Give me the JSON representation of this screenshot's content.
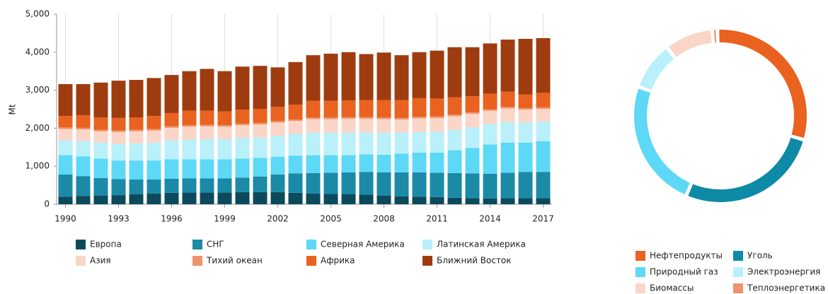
{
  "chart_data": [
    {
      "type": "bar",
      "stacked": true,
      "y_label": "Mt",
      "categories": [
        "1990",
        null,
        null,
        "1993",
        null,
        null,
        "1996",
        null,
        null,
        "1999",
        null,
        null,
        "2002",
        null,
        null,
        "2005",
        null,
        null,
        "2008",
        null,
        null,
        "2011",
        null,
        null,
        "2014",
        null,
        null,
        "2017"
      ],
      "ylim": [
        0,
        5000
      ],
      "yticks": [
        0,
        {
          "value": 1000,
          "label": "1,000"
        },
        {
          "value": 2000,
          "label": "2,000"
        },
        {
          "value": 3000,
          "label": "3,000"
        },
        {
          "value": 4000,
          "label": "4,000"
        },
        {
          "value": 5000,
          "label": "5,000"
        }
      ],
      "grid": "x",
      "series": [
        {
          "name": "Европа",
          "color": "#0b4a5c",
          "values": [
            200,
            220,
            230,
            240,
            260,
            280,
            300,
            310,
            310,
            310,
            320,
            320,
            320,
            300,
            280,
            270,
            260,
            250,
            230,
            210,
            200,
            190,
            170,
            160,
            150,
            160,
            160,
            160
          ]
        },
        {
          "name": "СНГ",
          "color": "#1b8aa6",
          "values": [
            580,
            520,
            460,
            420,
            390,
            370,
            370,
            370,
            370,
            370,
            380,
            410,
            460,
            510,
            540,
            560,
            580,
            600,
            610,
            630,
            640,
            640,
            650,
            650,
            650,
            670,
            690,
            690
          ]
        },
        {
          "name": "Северная Америка",
          "color": "#5dd8f7",
          "values": [
            510,
            520,
            510,
            490,
            500,
            500,
            510,
            500,
            500,
            500,
            500,
            490,
            470,
            470,
            470,
            460,
            450,
            460,
            460,
            490,
            520,
            530,
            600,
            670,
            770,
            790,
            770,
            810
          ]
        },
        {
          "name": "Латинская Америка",
          "color": "#b9f0fa",
          "values": [
            390,
            400,
            420,
            430,
            450,
            470,
            500,
            520,
            530,
            530,
            540,
            530,
            550,
            570,
            590,
            590,
            590,
            580,
            580,
            550,
            540,
            550,
            540,
            540,
            540,
            540,
            530,
            510
          ]
        },
        {
          "name": "Азия",
          "color": "#f9d6c8",
          "values": [
            300,
            310,
            300,
            320,
            320,
            320,
            330,
            340,
            340,
            330,
            340,
            350,
            350,
            340,
            360,
            360,
            370,
            360,
            360,
            350,
            360,
            360,
            360,
            360,
            350,
            360,
            340,
            340
          ]
        },
        {
          "name": "Тихий океан",
          "color": "#f0926b",
          "values": [
            40,
            40,
            40,
            40,
            40,
            40,
            40,
            40,
            40,
            40,
            40,
            40,
            40,
            40,
            40,
            40,
            40,
            40,
            40,
            40,
            40,
            40,
            40,
            40,
            40,
            40,
            40,
            40
          ]
        },
        {
          "name": "Африка",
          "color": "#e9621f",
          "values": [
            300,
            330,
            320,
            330,
            320,
            340,
            350,
            380,
            370,
            360,
            370,
            370,
            370,
            390,
            440,
            440,
            440,
            450,
            460,
            470,
            490,
            470,
            450,
            420,
            410,
            400,
            360,
            380
          ]
        },
        {
          "name": "Ближний Восток",
          "color": "#9e3c10",
          "values": [
            840,
            820,
            920,
            980,
            990,
            1000,
            1000,
            1040,
            1100,
            1060,
            1130,
            1130,
            1040,
            1120,
            1200,
            1240,
            1270,
            1210,
            1250,
            1180,
            1210,
            1260,
            1320,
            1290,
            1320,
            1370,
            1460,
            1440
          ]
        }
      ]
    },
    {
      "type": "pie",
      "donut": true,
      "categories": [
        "Нефтепродукты",
        "Уголь",
        "Природный газ",
        "Электроэнергия",
        "Биомассы",
        "Теплоэнергетика"
      ],
      "colors": [
        "#e9621f",
        "#0e8aa6",
        "#5dd8f7",
        "#b9f0fa",
        "#f9d6c8",
        "#f0926b"
      ],
      "values": [
        30,
        27,
        24,
        9,
        9,
        1
      ]
    }
  ]
}
